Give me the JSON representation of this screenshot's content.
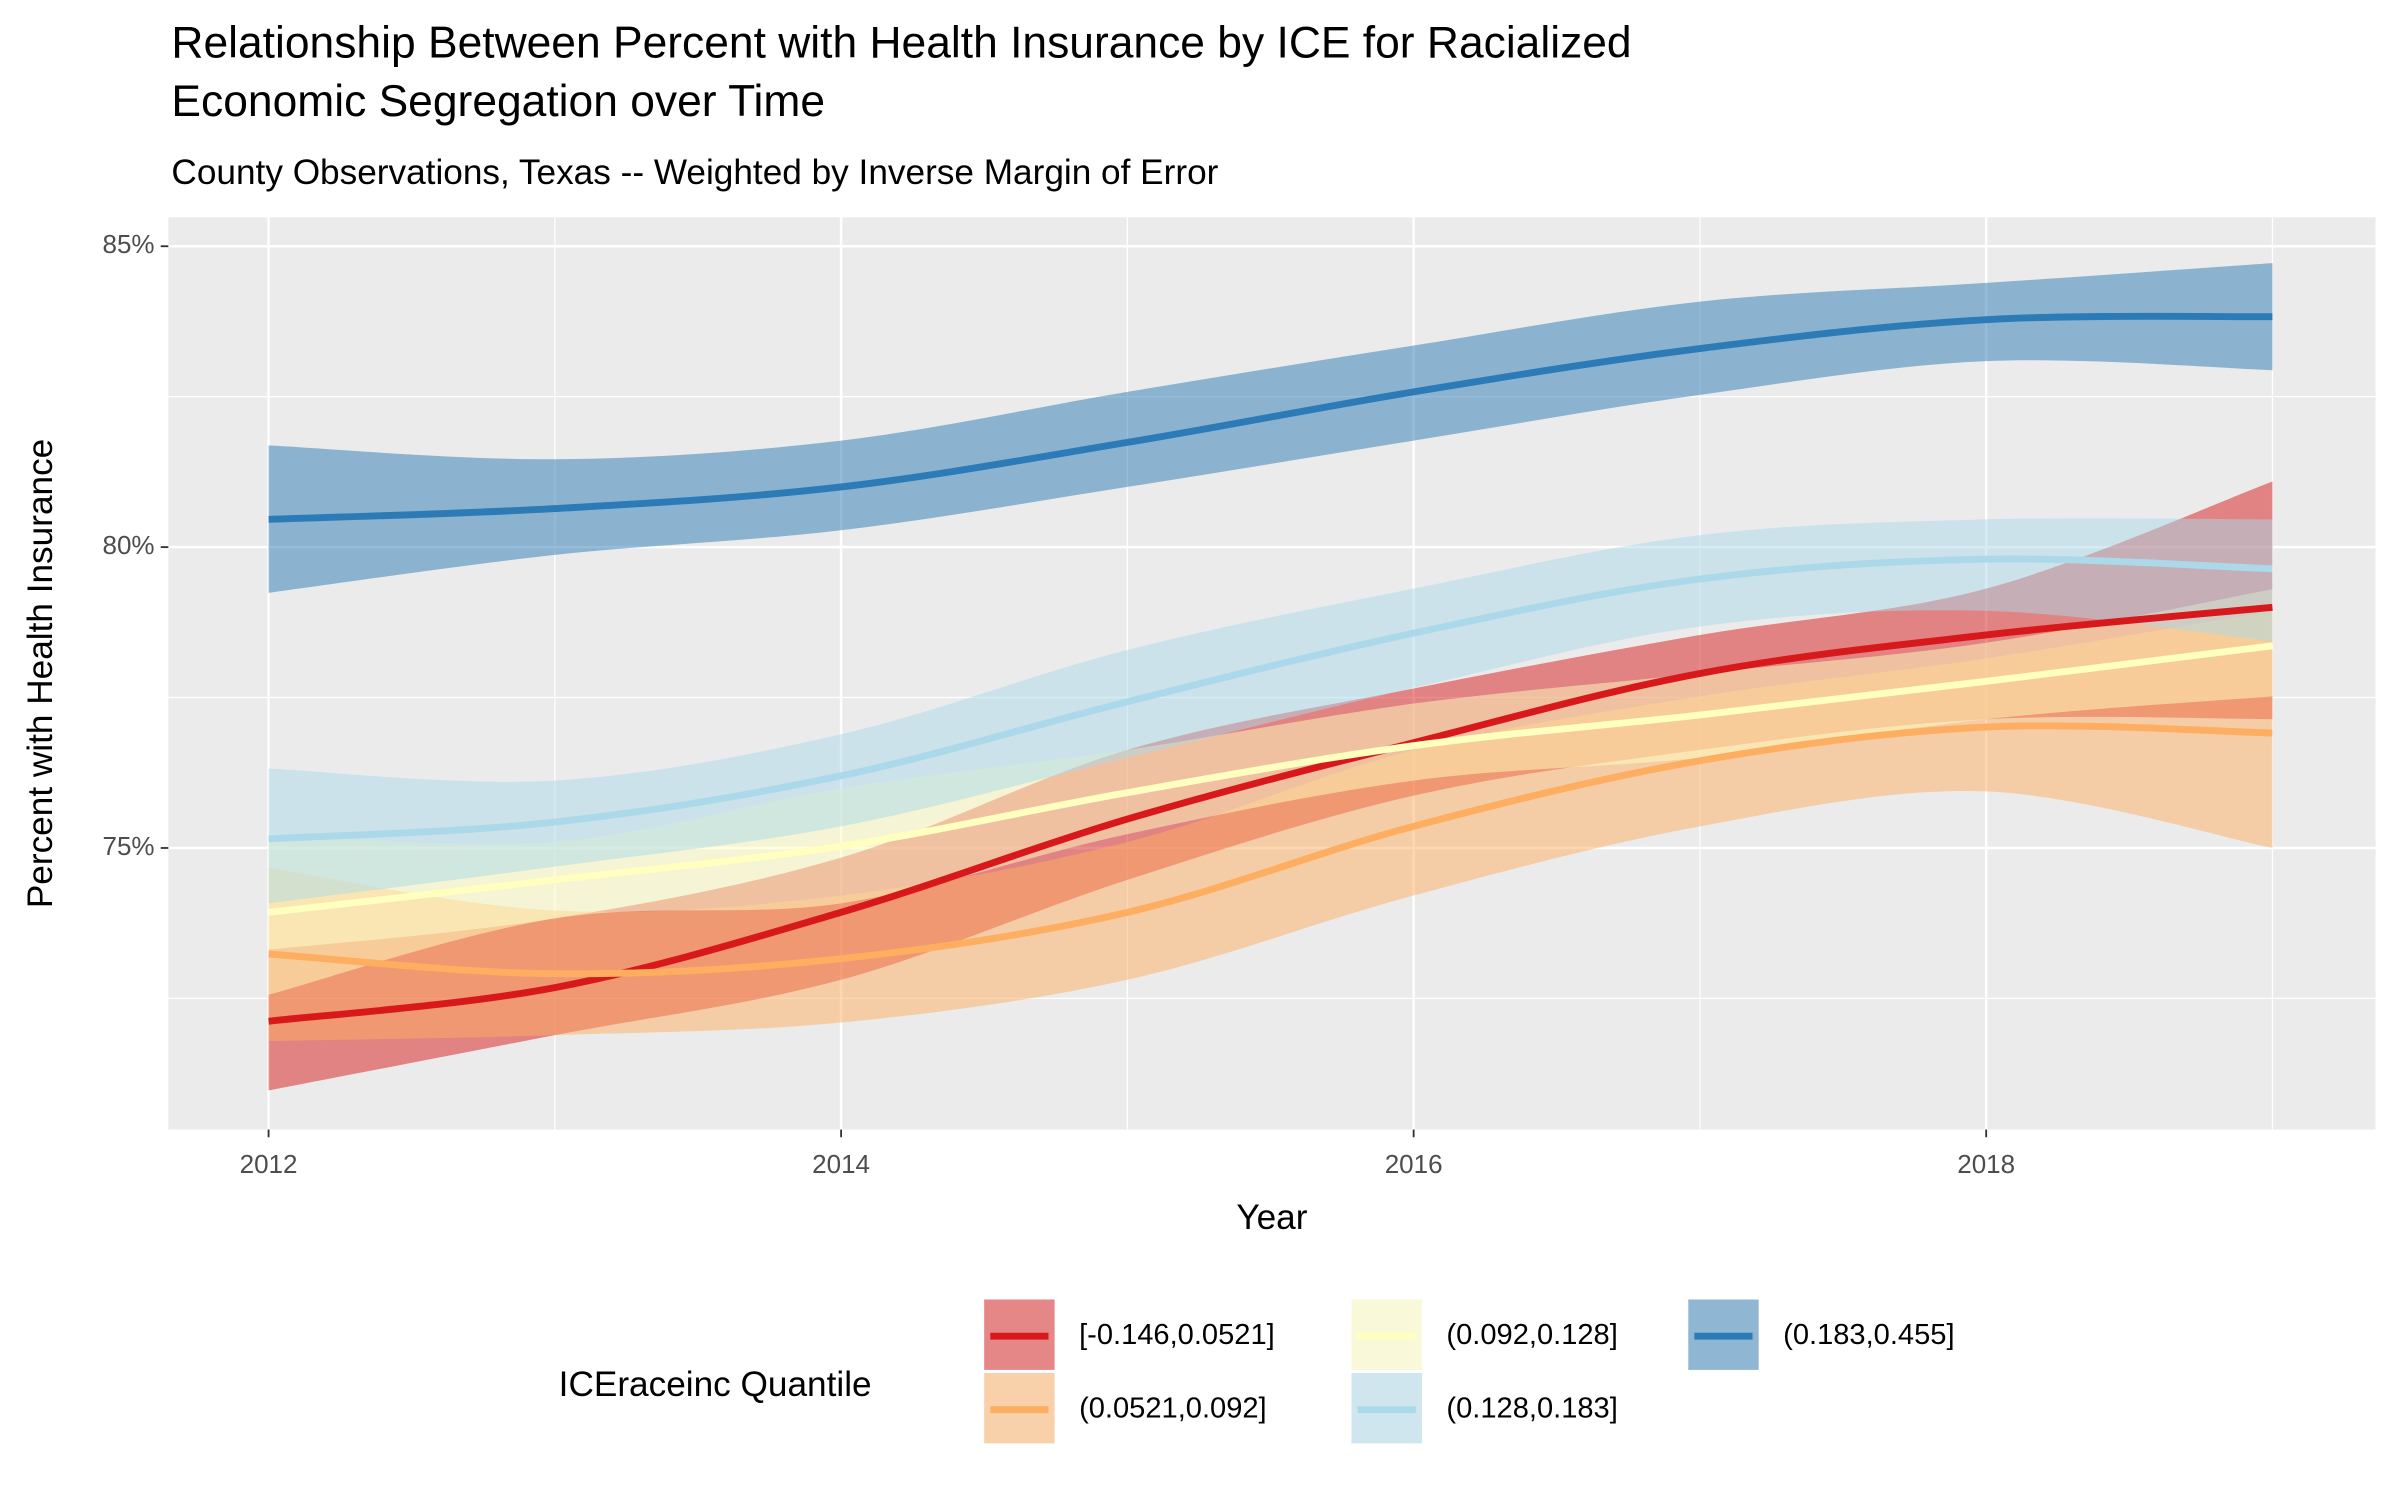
{
  "chart_data": {
    "type": "line",
    "title": [
      "Relationship Between Percent with Health Insurance by ICE for Racialized",
      "Economic Segregation over Time"
    ],
    "subtitle": "County Observations, Texas -- Weighted by Inverse Margin of Error",
    "x_label": "Year",
    "y_label": "Percent with Health Insurance",
    "x": [
      2012,
      2013,
      2014,
      2015,
      2016,
      2017,
      2018,
      2019
    ],
    "xlim": [
      2011.65,
      2019.36
    ],
    "xticks": [
      2012,
      2014,
      2016,
      2018
    ],
    "ylim": [
      70.32,
      85.48
    ],
    "yticks": [
      {
        "value": 75,
        "label": "75%"
      },
      {
        "value": 80,
        "label": "80%"
      },
      {
        "value": 85,
        "label": "85%"
      }
    ],
    "grid": true,
    "legend_title": "ICEraceinc Quantile",
    "legend_position": "bottom",
    "series": [
      {
        "name": "[-0.146,0.0521]",
        "color": "#d7191c",
        "values": [
          72.12,
          72.68,
          73.93,
          75.48,
          76.75,
          77.9,
          78.54,
          79.0
        ],
        "lower": [
          70.97,
          71.89,
          72.81,
          74.47,
          75.87,
          76.63,
          77.14,
          77.14
        ],
        "upper": [
          73.31,
          73.83,
          74.84,
          76.63,
          77.65,
          78.54,
          79.31,
          81.09
        ]
      },
      {
        "name": "(0.0521,0.092]",
        "color": "#fdae61",
        "values": [
          73.24,
          72.91,
          73.16,
          73.93,
          75.36,
          76.45,
          77.01,
          76.91
        ],
        "lower": [
          71.79,
          71.89,
          72.1,
          72.81,
          74.21,
          75.36,
          75.94,
          75.0
        ],
        "upper": [
          74.67,
          73.96,
          74.21,
          75.1,
          76.63,
          77.52,
          78.15,
          78.94
        ]
      },
      {
        "name": "(0.092,0.128]",
        "color": "#ffffbf",
        "values": [
          73.93,
          74.47,
          75.03,
          75.92,
          76.7,
          77.21,
          77.77,
          78.36
        ],
        "lower": [
          72.56,
          73.83,
          74.08,
          75.23,
          76.12,
          76.5,
          77.14,
          77.52
        ],
        "upper": [
          75.23,
          75.1,
          75.99,
          76.63,
          77.4,
          77.9,
          78.41,
          79.3
        ]
      },
      {
        "name": "(0.128,0.183]",
        "color": "#abd9e9",
        "values": [
          75.15,
          75.43,
          76.2,
          77.43,
          78.57,
          79.47,
          79.8,
          79.64
        ],
        "lower": [
          74.08,
          74.69,
          75.36,
          76.5,
          77.66,
          78.68,
          78.94,
          78.43
        ],
        "upper": [
          76.32,
          76.12,
          76.89,
          78.29,
          79.31,
          80.2,
          80.46,
          80.46
        ]
      },
      {
        "name": "(0.183,0.455]",
        "color": "#2c7bb6",
        "values": [
          80.46,
          80.64,
          81.0,
          81.74,
          82.58,
          83.3,
          83.78,
          83.83
        ],
        "lower": [
          79.24,
          79.87,
          80.28,
          81.0,
          81.77,
          82.53,
          83.09,
          82.94
        ],
        "upper": [
          81.69,
          81.46,
          81.77,
          82.58,
          83.35,
          84.08,
          84.39,
          84.72
        ]
      }
    ]
  }
}
